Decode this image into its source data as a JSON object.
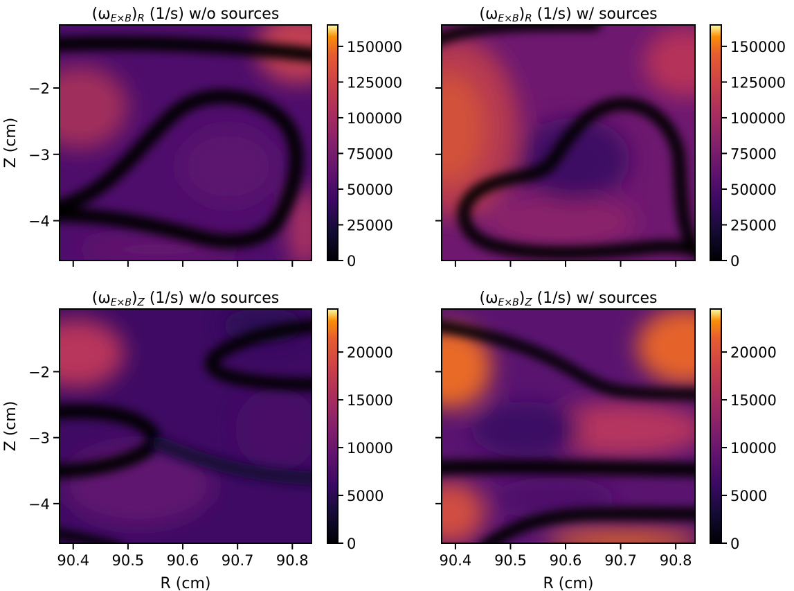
{
  "chart_data": [
    {
      "type": "heatmap",
      "title_prefix": "(ω",
      "title_sub": "E×B",
      "title_comp": "R",
      "title_suffix": " (1/s) w/o sources",
      "ylabel": "Z (cm)",
      "xlabel": "",
      "xlim": [
        90.375,
        90.835
      ],
      "ylim": [
        -4.6,
        -1.05
      ],
      "y_ticks": [
        -2,
        -3,
        -4
      ],
      "x_ticks": [
        90.4,
        90.5,
        90.6,
        90.7,
        90.8
      ],
      "show_x_ticklabels": false,
      "show_y_ticklabels": true,
      "colormap": "inferno",
      "colorbar": {
        "min": 0,
        "max": 165000,
        "ticks": [
          0,
          25000,
          50000,
          75000,
          100000,
          125000,
          150000
        ]
      }
    },
    {
      "type": "heatmap",
      "title_prefix": "(ω",
      "title_sub": "E×B",
      "title_comp": "R",
      "title_suffix": " (1/s) w/ sources",
      "ylabel": "",
      "xlabel": "",
      "xlim": [
        90.375,
        90.835
      ],
      "ylim": [
        -4.6,
        -1.05
      ],
      "y_ticks": [
        -2,
        -3,
        -4
      ],
      "x_ticks": [
        90.4,
        90.5,
        90.6,
        90.7,
        90.8
      ],
      "show_x_ticklabels": false,
      "show_y_ticklabels": false,
      "colormap": "inferno",
      "colorbar": {
        "min": 0,
        "max": 165000,
        "ticks": [
          0,
          25000,
          50000,
          75000,
          100000,
          125000,
          150000
        ]
      }
    },
    {
      "type": "heatmap",
      "title_prefix": "(ω",
      "title_sub": "E×B",
      "title_comp": "Z",
      "title_suffix": " (1/s) w/o sources",
      "ylabel": "Z (cm)",
      "xlabel": "R (cm)",
      "xlim": [
        90.375,
        90.835
      ],
      "ylim": [
        -4.6,
        -1.05
      ],
      "y_ticks": [
        -2,
        -3,
        -4
      ],
      "x_ticks": [
        90.4,
        90.5,
        90.6,
        90.7,
        90.8
      ],
      "show_x_ticklabels": true,
      "show_y_ticklabels": true,
      "colormap": "inferno",
      "colorbar": {
        "min": 0,
        "max": 24500,
        "ticks": [
          0,
          5000,
          10000,
          15000,
          20000
        ]
      }
    },
    {
      "type": "heatmap",
      "title_prefix": "(ω",
      "title_sub": "E×B",
      "title_comp": "Z",
      "title_suffix": " (1/s) w/ sources",
      "ylabel": "",
      "xlabel": "R (cm)",
      "xlim": [
        90.375,
        90.835
      ],
      "ylim": [
        -4.6,
        -1.05
      ],
      "y_ticks": [
        -2,
        -3,
        -4
      ],
      "x_ticks": [
        90.4,
        90.5,
        90.6,
        90.7,
        90.8
      ],
      "show_x_ticklabels": true,
      "show_y_ticklabels": false,
      "colormap": "inferno",
      "colorbar": {
        "min": 0,
        "max": 24500,
        "ticks": [
          0,
          5000,
          10000,
          15000,
          20000
        ]
      }
    }
  ]
}
